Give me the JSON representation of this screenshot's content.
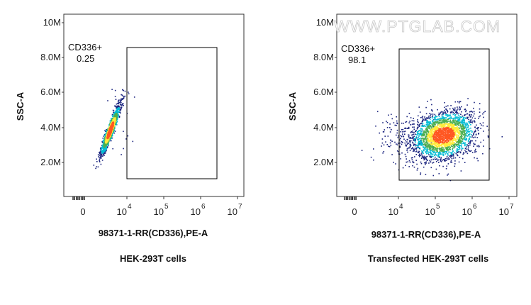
{
  "watermark": "WWW.PTGLAB.COM",
  "colors": {
    "density_low": "#1a237e",
    "density_mid": "#00bcd4",
    "density_midhigh": "#4caf50",
    "density_high": "#ffeb3b",
    "density_peak": "#ff5722",
    "gate": "#000000"
  },
  "chart_data": [
    {
      "type": "scatter",
      "subtype": "flow-cytometry-density-dot-plot",
      "title": "HEK-293T cells",
      "xlabel": "98371-1-RR(CD336),PE-A",
      "ylabel": "SSC-A",
      "x_scale": "biexponential",
      "x_tick_labels": [
        {
          "value": "0",
          "base": "0",
          "exp": ""
        },
        {
          "value": "10^4",
          "base": "10",
          "exp": "4"
        },
        {
          "value": "10^5",
          "base": "10",
          "exp": "5"
        },
        {
          "value": "10^6",
          "base": "10",
          "exp": "6"
        },
        {
          "value": "10^7",
          "base": "10",
          "exp": "7"
        }
      ],
      "y_tick_labels": [
        "10M",
        "8.0M",
        "6.0M",
        "4.0M",
        "2.0M"
      ],
      "ylim": [
        0,
        10500000
      ],
      "gate": {
        "name": "CD336+",
        "percent": "0.25",
        "x_range": [
          17000,
          4500000
        ],
        "y_range": [
          1000000,
          8600000
        ]
      },
      "population": {
        "x_center": 6000,
        "y_center": 3800000,
        "shape": "tight diagonal cluster left of gate"
      }
    },
    {
      "type": "scatter",
      "subtype": "flow-cytometry-density-dot-plot",
      "title": "Transfected HEK-293T cells",
      "xlabel": "98371-1-RR(CD336),PE-A",
      "ylabel": "SSC-A",
      "x_scale": "biexponential",
      "x_tick_labels": [
        {
          "value": "0",
          "base": "0",
          "exp": ""
        },
        {
          "value": "10^4",
          "base": "10",
          "exp": "4"
        },
        {
          "value": "10^5",
          "base": "10",
          "exp": "5"
        },
        {
          "value": "10^6",
          "base": "10",
          "exp": "6"
        },
        {
          "value": "10^7",
          "base": "10",
          "exp": "7"
        }
      ],
      "y_tick_labels": [
        "10M",
        "8.0M",
        "6.0M",
        "4.0M",
        "2.0M"
      ],
      "ylim": [
        0,
        10500000
      ],
      "gate": {
        "name": "CD336+",
        "percent": "98.1",
        "x_range": [
          17000,
          4500000
        ],
        "y_range": [
          1000000,
          8600000
        ]
      },
      "population": {
        "x_center": 150000,
        "y_center": 3300000,
        "shape": "broad cluster inside gate"
      }
    }
  ]
}
